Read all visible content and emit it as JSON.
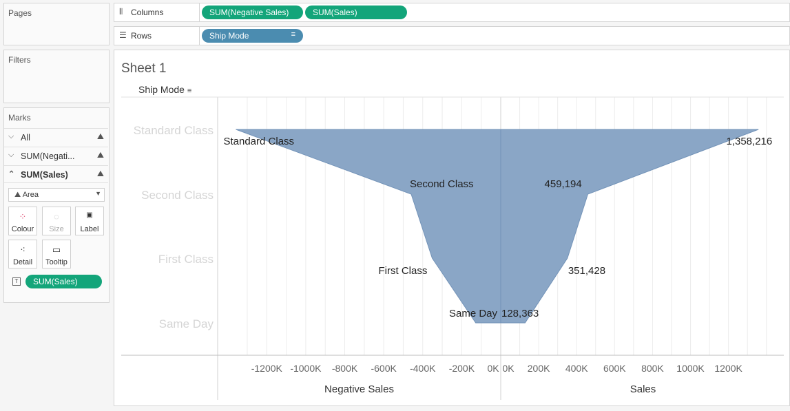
{
  "pages_panel": {
    "title": "Pages"
  },
  "filters_panel": {
    "title": "Filters"
  },
  "marks_panel": {
    "title": "Marks",
    "rows": [
      {
        "label": "All",
        "chevron": "⌵"
      },
      {
        "label": "SUM(Negati...",
        "chevron": "⌵"
      },
      {
        "label": "SUM(Sales)",
        "chevron": "⌃"
      }
    ],
    "mark_type": "Area",
    "buttons": [
      {
        "label": "Colour",
        "icon": "colour-icon"
      },
      {
        "label": "Size",
        "icon": "size-icon"
      },
      {
        "label": "Label",
        "icon": "label-icon"
      },
      {
        "label": "Detail",
        "icon": "detail-icon"
      },
      {
        "label": "Tooltip",
        "icon": "tooltip-icon"
      }
    ],
    "label_pill": "SUM(Sales)"
  },
  "columns_shelf": {
    "label": "Columns",
    "pills": [
      "SUM(Negative Sales)",
      "SUM(Sales)"
    ]
  },
  "rows_shelf": {
    "label": "Rows",
    "pills": [
      "Ship Mode"
    ]
  },
  "sheet": {
    "title": "Sheet 1",
    "row_header": "Ship Mode"
  },
  "colors": {
    "area_fill": "#8aa6c6",
    "area_stroke": "#7393b8",
    "green_pill": "#13a57a",
    "blue_pill": "#4b8cb0"
  },
  "chart_data": {
    "type": "area",
    "categories": [
      "Standard Class",
      "Second Class",
      "First Class",
      "Same Day"
    ],
    "series": [
      {
        "name": "Negative Sales",
        "values": [
          -1358216,
          -459194,
          -351428,
          -128363
        ],
        "labels": [
          "Standard Class",
          "Second Class",
          "First Class",
          "Same Day"
        ]
      },
      {
        "name": "Sales",
        "values": [
          1358216,
          459194,
          351428,
          128363
        ],
        "labels": [
          "1,358,216",
          "459,194",
          "351,428",
          "128,363"
        ]
      }
    ],
    "left_axis": {
      "title": "Negative Sales",
      "ticks": [
        -1200000,
        -1000000,
        -800000,
        -600000,
        -400000,
        -200000,
        0
      ],
      "tick_labels": [
        "-1200K",
        "-1000K",
        "-800K",
        "-600K",
        "-400K",
        "-200K",
        "0K"
      ],
      "range": [
        -1420000,
        0
      ]
    },
    "right_axis": {
      "title": "Sales",
      "ticks": [
        0,
        200000,
        400000,
        600000,
        800000,
        1000000,
        1200000
      ],
      "tick_labels": [
        "0K",
        "200K",
        "400K",
        "600K",
        "800K",
        "1000K",
        "1200K"
      ],
      "range": [
        0,
        1430000
      ]
    }
  }
}
